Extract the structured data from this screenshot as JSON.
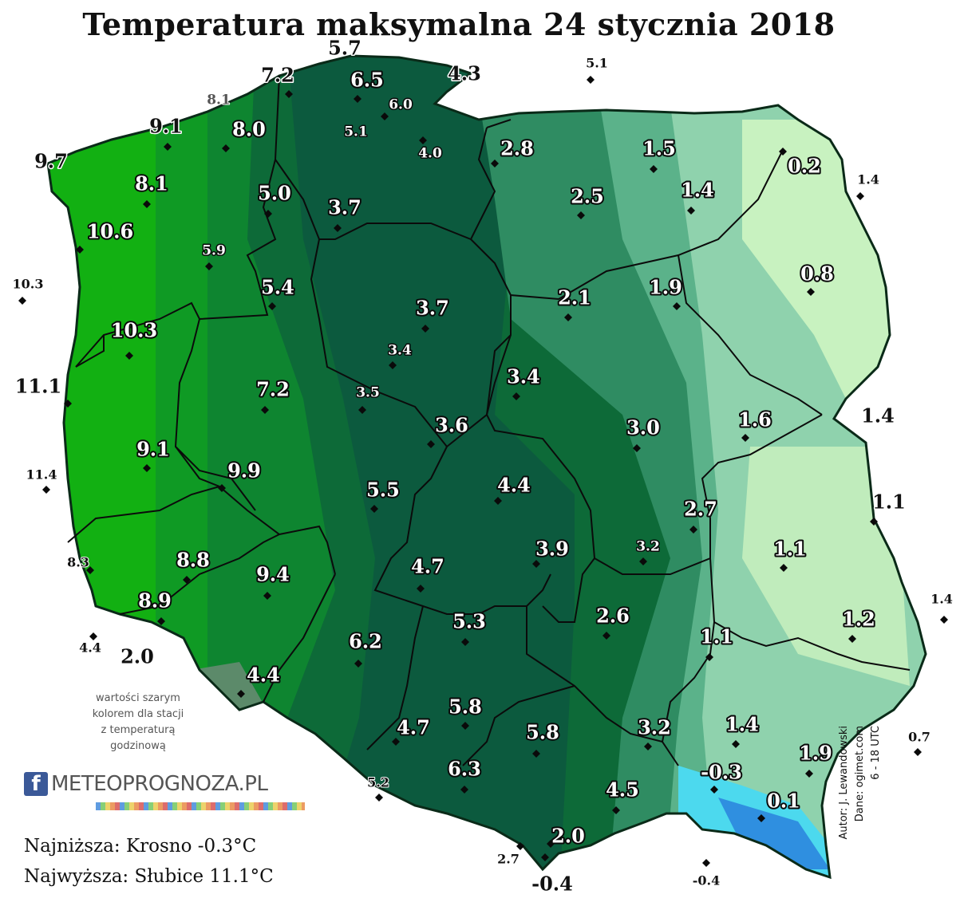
{
  "title": "Temperatura maksymalna 24 stycznia 2018",
  "legend_note": [
    "wartości szarym",
    "kolorem dla stacji",
    "z temperaturą",
    "godzinową"
  ],
  "logo": {
    "f": "f",
    "text": "METEOPROGNOZA.PL"
  },
  "extremes": {
    "lowest": "Najniższa: Krosno -0.3°C",
    "highest": "Najwyższa: Słubice 11.1°C"
  },
  "credits": [
    "Autor: J. Lewandowski",
    "Dane: ogimet.com",
    "6 - 18 UTC"
  ],
  "colors": {
    "bright_green": "#12b012",
    "dark_green": "#0d5a3a",
    "mid_green": "#3a9c72",
    "light_green": "#8fd2ad",
    "pale_green": "#d4f8c8",
    "cyan": "#4cd9ee",
    "blue": "#2f8fe0"
  },
  "stations": [
    {
      "value": "5.7",
      "style": "plain",
      "marker": false
    },
    {
      "value": "7.2",
      "style": "plain",
      "marker": true
    },
    {
      "value": "6.5",
      "style": "white",
      "marker": true
    },
    {
      "value": "4.3",
      "style": "plain",
      "marker": false
    },
    {
      "value": "5.1",
      "style": "plain-small",
      "marker": true
    },
    {
      "value": "8.1",
      "style": "gray",
      "marker": false
    },
    {
      "value": "6.0",
      "style": "white-small",
      "marker": true
    },
    {
      "value": "9.1",
      "style": "plain",
      "marker": true
    },
    {
      "value": "8.0",
      "style": "white",
      "marker": true
    },
    {
      "value": "5.1",
      "style": "white-small",
      "marker": false
    },
    {
      "value": "4.0",
      "style": "white-small",
      "marker": true
    },
    {
      "value": "2.8",
      "style": "white",
      "marker": true
    },
    {
      "value": "1.5",
      "style": "white",
      "marker": true
    },
    {
      "value": "0.2",
      "style": "white",
      "marker": true
    },
    {
      "value": "9.7",
      "style": "plain",
      "marker": false
    },
    {
      "value": "8.1",
      "style": "white",
      "marker": true
    },
    {
      "value": "1.4",
      "style": "plain-small",
      "marker": true
    },
    {
      "value": "5.0",
      "style": "white",
      "marker": true
    },
    {
      "value": "2.5",
      "style": "white",
      "marker": true
    },
    {
      "value": "1.4",
      "style": "white",
      "marker": true
    },
    {
      "value": "3.7",
      "style": "white",
      "marker": true
    },
    {
      "value": "10.6",
      "style": "white",
      "marker": true
    },
    {
      "value": "5.9",
      "style": "white-small",
      "marker": true
    },
    {
      "value": "0.8",
      "style": "white",
      "marker": true
    },
    {
      "value": "10.3",
      "style": "plain-small",
      "marker": true
    },
    {
      "value": "5.4",
      "style": "white",
      "marker": true
    },
    {
      "value": "2.1",
      "style": "white",
      "marker": true
    },
    {
      "value": "1.9",
      "style": "white",
      "marker": true
    },
    {
      "value": "3.7",
      "style": "white",
      "marker": true
    },
    {
      "value": "10.3",
      "style": "white",
      "marker": true
    },
    {
      "value": "3.4",
      "style": "white-small",
      "marker": true
    },
    {
      "value": "11.1",
      "style": "plain",
      "marker": true
    },
    {
      "value": "3.4",
      "style": "white",
      "marker": true
    },
    {
      "value": "7.2",
      "style": "white",
      "marker": true
    },
    {
      "value": "3.5",
      "style": "white-small",
      "marker": true
    },
    {
      "value": "1.4",
      "style": "plain",
      "marker": false
    },
    {
      "value": "3.6",
      "style": "white",
      "marker": true
    },
    {
      "value": "3.0",
      "style": "white",
      "marker": true
    },
    {
      "value": "1.6",
      "style": "white",
      "marker": true
    },
    {
      "value": "9.1",
      "style": "white",
      "marker": true
    },
    {
      "value": "11.4",
      "style": "plain-small",
      "marker": true
    },
    {
      "value": "9.9",
      "style": "white",
      "marker": true
    },
    {
      "value": "4.4",
      "style": "white",
      "marker": true
    },
    {
      "value": "5.5",
      "style": "white",
      "marker": true
    },
    {
      "value": "1.1",
      "style": "plain",
      "marker": true
    },
    {
      "value": "2.7",
      "style": "white",
      "marker": true
    },
    {
      "value": "3.2",
      "style": "white-small",
      "marker": true
    },
    {
      "value": "3.9",
      "style": "white",
      "marker": true
    },
    {
      "value": "1.1",
      "style": "white",
      "marker": true
    },
    {
      "value": "8.3",
      "style": "plain-small",
      "marker": true
    },
    {
      "value": "8.8",
      "style": "white",
      "marker": true
    },
    {
      "value": "9.4",
      "style": "white",
      "marker": true
    },
    {
      "value": "4.7",
      "style": "white",
      "marker": true
    },
    {
      "value": "1.4",
      "style": "plain-small",
      "marker": true
    },
    {
      "value": "8.9",
      "style": "white",
      "marker": true
    },
    {
      "value": "2.6",
      "style": "white",
      "marker": true
    },
    {
      "value": "5.3",
      "style": "white",
      "marker": true
    },
    {
      "value": "1.2",
      "style": "white",
      "marker": true
    },
    {
      "value": "1.1",
      "style": "white",
      "marker": true
    },
    {
      "value": "4.4",
      "style": "plain-small",
      "marker": true
    },
    {
      "value": "2.0",
      "style": "plain",
      "marker": false
    },
    {
      "value": "6.2",
      "style": "white",
      "marker": true
    },
    {
      "value": "4.4",
      "style": "white",
      "marker": true
    },
    {
      "value": "5.8",
      "style": "white",
      "marker": true
    },
    {
      "value": "1.4",
      "style": "white",
      "marker": true
    },
    {
      "value": "3.2",
      "style": "white",
      "marker": true
    },
    {
      "value": "4.7",
      "style": "white",
      "marker": true
    },
    {
      "value": "5.8",
      "style": "white",
      "marker": true
    },
    {
      "value": "0.7",
      "style": "plain-small",
      "marker": true
    },
    {
      "value": "1.9",
      "style": "white",
      "marker": true
    },
    {
      "value": "-0.3",
      "style": "white",
      "marker": true
    },
    {
      "value": "6.3",
      "style": "white",
      "marker": true
    },
    {
      "value": "5.2",
      "style": "plain-small",
      "marker": true
    },
    {
      "value": "4.5",
      "style": "white",
      "marker": true
    },
    {
      "value": "0.1",
      "style": "white",
      "marker": true
    },
    {
      "value": "2.0",
      "style": "white",
      "marker": true
    },
    {
      "value": "2.7",
      "style": "plain-small",
      "marker": true
    },
    {
      "value": "-0.4",
      "style": "plain",
      "marker": true
    },
    {
      "value": "-0.4",
      "style": "plain-small",
      "marker": true
    }
  ]
}
